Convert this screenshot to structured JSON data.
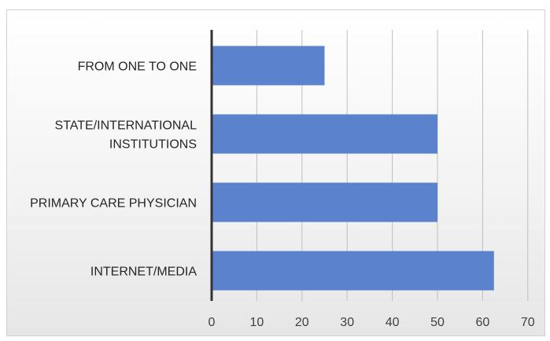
{
  "chart_data": {
    "type": "bar",
    "orientation": "horizontal",
    "title": "",
    "xlabel": "",
    "ylabel": "",
    "categories": [
      [
        "FROM ONE TO ONE"
      ],
      [
        "STATE/INTERNATIONAL",
        "INSTITUTIONS"
      ],
      [
        "PRIMARY CARE PHYSICIAN"
      ],
      [
        "INTERNET/MEDIA"
      ]
    ],
    "values": [
      25,
      50,
      50,
      62.5
    ],
    "xlim": [
      0,
      70
    ],
    "xticks": [
      "0",
      "10",
      "20",
      "30",
      "40",
      "50",
      "60",
      "70"
    ],
    "grid": "vertical",
    "bar_color": "#5b82cc",
    "axis_color": "#333333",
    "grid_color": "#bfbfbf"
  }
}
